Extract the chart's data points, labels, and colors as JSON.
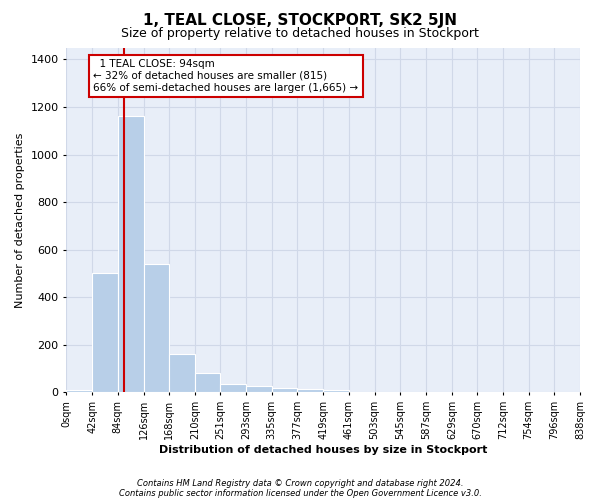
{
  "title": "1, TEAL CLOSE, STOCKPORT, SK2 5JN",
  "subtitle": "Size of property relative to detached houses in Stockport",
  "xlabel": "Distribution of detached houses by size in Stockport",
  "ylabel": "Number of detached properties",
  "footnote1": "Contains HM Land Registry data © Crown copyright and database right 2024.",
  "footnote2": "Contains public sector information licensed under the Open Government Licence v3.0.",
  "annotation_line1": "1 TEAL CLOSE: 94sqm",
  "annotation_line2": "← 32% of detached houses are smaller (815)",
  "annotation_line3": "66% of semi-detached houses are larger (1,665) →",
  "property_size": 94,
  "bin_edges": [
    0,
    42,
    84,
    126,
    168,
    210,
    251,
    293,
    335,
    377,
    419,
    461,
    503,
    545,
    587,
    629,
    670,
    712,
    754,
    796,
    838
  ],
  "bar_values": [
    10,
    500,
    1160,
    540,
    160,
    80,
    35,
    25,
    20,
    15,
    10,
    0,
    0,
    0,
    0,
    0,
    0,
    0,
    0,
    0
  ],
  "bar_color": "#b8cfe8",
  "grid_color": "#d0d8e8",
  "vline_color": "#cc0000",
  "annotation_box_color": "#cc0000",
  "ylim": [
    0,
    1450
  ],
  "xlim": [
    0,
    838
  ],
  "tick_labels": [
    "0sqm",
    "42sqm",
    "84sqm",
    "126sqm",
    "168sqm",
    "210sqm",
    "251sqm",
    "293sqm",
    "335sqm",
    "377sqm",
    "419sqm",
    "461sqm",
    "503sqm",
    "545sqm",
    "587sqm",
    "629sqm",
    "670sqm",
    "712sqm",
    "754sqm",
    "796sqm",
    "838sqm"
  ],
  "bg_color": "#e8eef8",
  "title_fontsize": 11,
  "subtitle_fontsize": 9,
  "xlabel_fontsize": 8,
  "ylabel_fontsize": 8,
  "tick_fontsize": 7,
  "footnote_fontsize": 6
}
